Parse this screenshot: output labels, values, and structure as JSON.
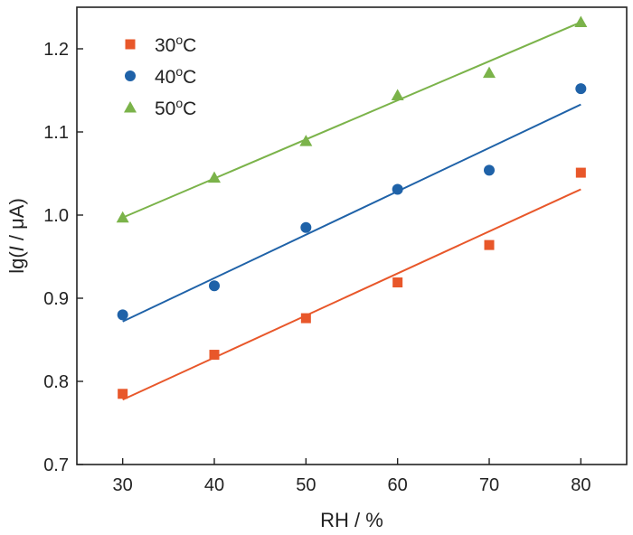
{
  "chart_data": {
    "type": "scatter",
    "xlabel": "RH / %",
    "ylabel": "lg(I / μA)",
    "xlim": [
      25,
      85
    ],
    "ylim": [
      0.7,
      1.25
    ],
    "xticks": [
      "30",
      "40",
      "50",
      "60",
      "70",
      "80"
    ],
    "yticks": [
      "0.7",
      "0.8",
      "0.9",
      "1.0",
      "1.1",
      "1.2"
    ],
    "x": [
      30,
      40,
      50,
      60,
      70,
      80
    ],
    "legend_position": "top-left",
    "series": [
      {
        "name": "30",
        "name_sup": "o",
        "name_suffix": "C",
        "marker": "square",
        "color": "#e8572a",
        "values": [
          0.785,
          0.832,
          0.876,
          0.919,
          0.964,
          1.051
        ],
        "fit": [
          0.778,
          1.031
        ]
      },
      {
        "name": "40",
        "name_sup": "o",
        "name_suffix": "C",
        "marker": "circle",
        "color": "#1f62a8",
        "values": [
          0.88,
          0.915,
          0.985,
          1.031,
          1.054,
          1.152
        ],
        "fit": [
          0.872,
          1.133
        ]
      },
      {
        "name": "50",
        "name_sup": "o",
        "name_suffix": "C",
        "marker": "triangle",
        "color": "#7bb34a",
        "values": [
          0.997,
          1.045,
          1.089,
          1.144,
          1.171,
          1.232
        ],
        "fit": [
          0.997,
          1.232
        ]
      }
    ]
  }
}
